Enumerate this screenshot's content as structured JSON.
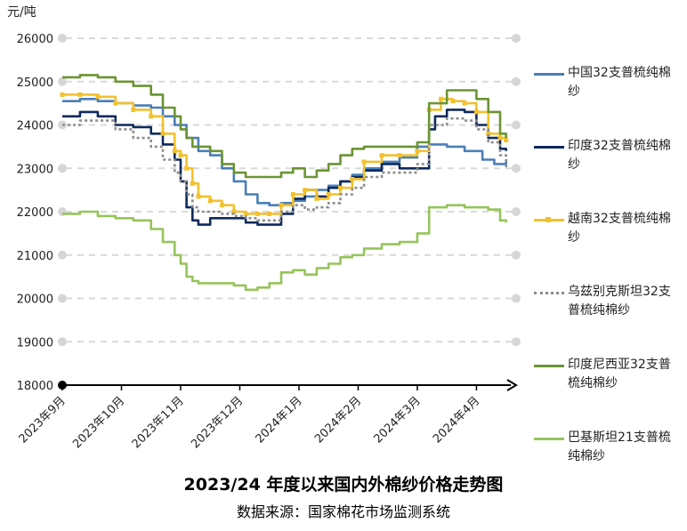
{
  "title": "2023/24 年度以来国内外棉纱价格走势图",
  "source": "数据来源：国家棉花市场监测系统",
  "colors": {
    "grid": "#d9d9d9",
    "axis": "#000000"
  },
  "chart_data": {
    "type": "line",
    "title": "2023/24 年度以来国内外棉纱价格走势图",
    "unit_label": "元/吨",
    "ylim": [
      18000,
      26000
    ],
    "yticks": [
      "26000",
      "25000",
      "24000",
      "23000",
      "22000",
      "21000",
      "20000",
      "19000",
      "18000"
    ],
    "x_range": [
      0,
      7.55
    ],
    "x_labels": [
      "2023年9月",
      "2023年10月",
      "2023年11月",
      "2023年12月",
      "2024年1月",
      "2024年2月",
      "2024年3月",
      "2024年4月"
    ],
    "grid": true,
    "legend_position": "right",
    "series": [
      {
        "name": "中国32支普梳纯棉纱",
        "color": "#4a7fb8",
        "dash": "",
        "marker": "",
        "x": [
          0,
          0.3,
          0.6,
          0.9,
          1.2,
          1.5,
          1.7,
          1.9,
          2.1,
          2.3,
          2.5,
          2.7,
          2.9,
          3.1,
          3.3,
          3.5,
          3.7,
          3.9,
          4.1,
          4.3,
          4.5,
          4.7,
          4.9,
          5.1,
          5.4,
          5.7,
          6.0,
          6.2,
          6.5,
          6.8,
          7.1,
          7.3,
          7.5
        ],
        "y": [
          24550,
          24600,
          24550,
          24500,
          24450,
          24400,
          24200,
          24000,
          23700,
          23400,
          23300,
          23000,
          22700,
          22400,
          22200,
          22150,
          22200,
          22250,
          22350,
          22500,
          22600,
          22700,
          22850,
          23000,
          23150,
          23250,
          23500,
          23550,
          23500,
          23400,
          23200,
          23100,
          23150
        ]
      },
      {
        "name": "印度32支普梳纯棉纱",
        "color": "#0f2a5c",
        "dash": "",
        "marker": "",
        "x": [
          0,
          0.3,
          0.6,
          0.9,
          1.2,
          1.5,
          1.7,
          1.9,
          2.0,
          2.1,
          2.2,
          2.3,
          2.5,
          2.7,
          2.9,
          3.1,
          3.3,
          3.5,
          3.7,
          3.9,
          4.1,
          4.3,
          4.5,
          4.7,
          4.9,
          5.1,
          5.4,
          5.7,
          6.0,
          6.2,
          6.3,
          6.5,
          6.8,
          7.0,
          7.2,
          7.4,
          7.5
        ],
        "y": [
          24200,
          24300,
          24200,
          24000,
          23950,
          23800,
          23550,
          23200,
          22700,
          22100,
          21800,
          21700,
          21850,
          21850,
          21850,
          21750,
          21700,
          21700,
          21950,
          22300,
          22500,
          22350,
          22550,
          22700,
          22800,
          22950,
          23100,
          23000,
          23000,
          23900,
          24200,
          24350,
          24300,
          24000,
          23700,
          23450,
          23400
        ]
      },
      {
        "name": "越南32支普梳纯棉纱",
        "color": "#f2c12e",
        "dash": "",
        "marker": "square",
        "x": [
          0,
          0.3,
          0.6,
          0.9,
          1.2,
          1.5,
          1.7,
          1.9,
          2.0,
          2.1,
          2.2,
          2.3,
          2.5,
          2.7,
          2.9,
          3.1,
          3.3,
          3.5,
          3.7,
          3.9,
          4.1,
          4.3,
          4.5,
          4.7,
          4.9,
          5.1,
          5.4,
          5.7,
          6.0,
          6.2,
          6.4,
          6.6,
          6.8,
          7.0,
          7.2,
          7.4,
          7.5
        ],
        "y": [
          24700,
          24700,
          24650,
          24500,
          24350,
          24200,
          23800,
          23400,
          23300,
          23000,
          22650,
          22350,
          22250,
          22150,
          22000,
          21950,
          21950,
          21950,
          22150,
          22400,
          22500,
          22300,
          22400,
          22550,
          22750,
          23150,
          23300,
          23300,
          23400,
          24350,
          24600,
          24550,
          24500,
          24300,
          23800,
          23700,
          23650
        ]
      },
      {
        "name": "乌兹别克斯坦32支普梳纯棉纱",
        "color": "#8c8c8c",
        "dash": "3,3",
        "marker": "",
        "x": [
          0,
          0.3,
          0.6,
          0.9,
          1.2,
          1.5,
          1.7,
          1.9,
          2.0,
          2.1,
          2.2,
          2.3,
          2.5,
          2.7,
          2.9,
          3.1,
          3.3,
          3.5,
          3.7,
          3.9,
          4.1,
          4.3,
          4.5,
          4.7,
          4.9,
          5.1,
          5.4,
          5.7,
          6.0,
          6.2,
          6.5,
          6.8,
          7.0,
          7.2,
          7.4,
          7.5
        ],
        "y": [
          24000,
          24100,
          24100,
          23900,
          23700,
          23500,
          23200,
          22900,
          22700,
          22400,
          22100,
          22000,
          22000,
          21950,
          21900,
          21850,
          21800,
          21800,
          22000,
          22150,
          22050,
          22100,
          22200,
          22400,
          22550,
          22800,
          22900,
          22900,
          23100,
          24000,
          24150,
          24100,
          23900,
          23600,
          23300,
          23000
        ]
      },
      {
        "name": "印度尼西亚32支普梳纯棉纱",
        "color": "#6b9433",
        "dash": "",
        "marker": "",
        "x": [
          0,
          0.3,
          0.6,
          0.9,
          1.2,
          1.5,
          1.7,
          1.9,
          2.0,
          2.1,
          2.2,
          2.3,
          2.5,
          2.7,
          2.9,
          3.1,
          3.3,
          3.5,
          3.7,
          3.9,
          4.1,
          4.3,
          4.5,
          4.7,
          4.9,
          5.1,
          5.4,
          5.7,
          6.0,
          6.2,
          6.5,
          6.8,
          7.0,
          7.2,
          7.4,
          7.5
        ],
        "y": [
          25100,
          25150,
          25100,
          25000,
          24900,
          24700,
          24400,
          24200,
          23900,
          23700,
          23500,
          23500,
          23400,
          23100,
          22900,
          22800,
          22800,
          22800,
          22900,
          23000,
          22800,
          22950,
          23100,
          23300,
          23450,
          23500,
          23500,
          23500,
          23600,
          24500,
          24800,
          24800,
          24600,
          24300,
          23800,
          23700
        ]
      },
      {
        "name": "巴基斯坦21支普梳纯棉纱",
        "color": "#96c45a",
        "dash": "",
        "marker": "",
        "x": [
          0,
          0.3,
          0.6,
          0.9,
          1.2,
          1.5,
          1.7,
          1.9,
          2.0,
          2.1,
          2.2,
          2.3,
          2.5,
          2.7,
          2.9,
          3.1,
          3.3,
          3.5,
          3.7,
          3.9,
          4.1,
          4.3,
          4.5,
          4.7,
          4.9,
          5.1,
          5.4,
          5.7,
          6.0,
          6.2,
          6.5,
          6.8,
          7.0,
          7.2,
          7.4,
          7.5
        ],
        "y": [
          21950,
          22000,
          21900,
          21850,
          21800,
          21600,
          21300,
          21000,
          20800,
          20500,
          20400,
          20350,
          20350,
          20350,
          20300,
          20200,
          20250,
          20350,
          20600,
          20650,
          20550,
          20700,
          20800,
          20950,
          21000,
          21150,
          21250,
          21300,
          21500,
          22100,
          22150,
          22100,
          22100,
          22050,
          21800,
          21750
        ]
      }
    ]
  }
}
